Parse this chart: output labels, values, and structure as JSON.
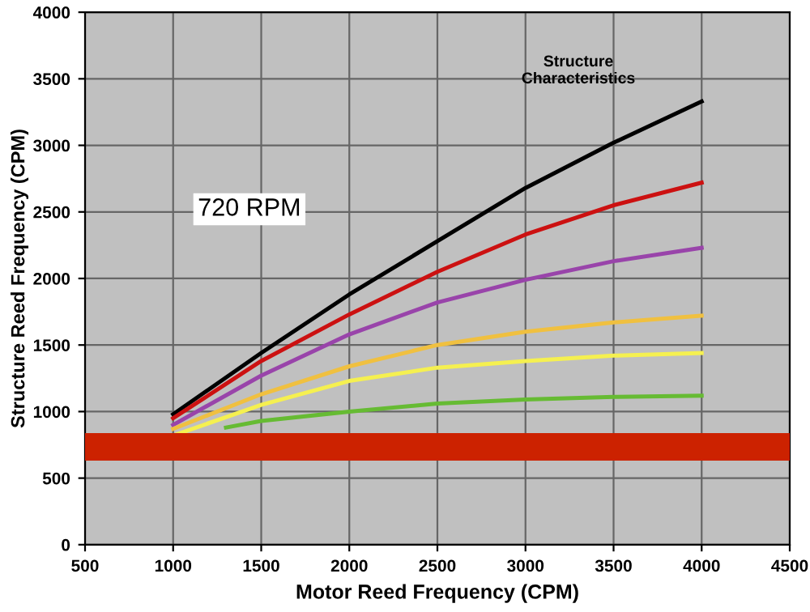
{
  "chart_data": {
    "type": "line",
    "xlabel": "Motor Reed Frequency (CPM)",
    "ylabel": "Structure Reed Frequency (CPM)",
    "x": [
      1000,
      1500,
      2000,
      2500,
      3000,
      3500,
      4000
    ],
    "series": [
      {
        "color": "#000000",
        "values": [
          980,
          1440,
          1880,
          2280,
          2680,
          3020,
          3330
        ]
      },
      {
        "color": "#cc1111",
        "values": [
          950,
          1380,
          1730,
          2050,
          2330,
          2550,
          2720
        ]
      },
      {
        "color": "#9944aa",
        "values": [
          900,
          1270,
          1580,
          1820,
          1990,
          2130,
          2230
        ]
      },
      {
        "color": "#f0c040",
        "values": [
          870,
          1130,
          1340,
          1500,
          1600,
          1670,
          1720
        ]
      },
      {
        "color": "#f5f050",
        "values": [
          820,
          1050,
          1230,
          1330,
          1380,
          1420,
          1440
        ]
      },
      {
        "color": "#66bb33",
        "x": [
          1300,
          1500,
          2000,
          2500,
          3000,
          3500,
          4000
        ],
        "values": [
          880,
          930,
          1000,
          1060,
          1090,
          1110,
          1120
        ]
      }
    ],
    "bands": [
      {
        "axis": "y",
        "from": 640,
        "to": 830,
        "color": "#cc2200"
      }
    ],
    "annotations": [
      "Structure\nCharacteristics",
      "720 RPM"
    ],
    "xlim": [
      500,
      4500
    ],
    "xticks": [
      500,
      1000,
      1500,
      2000,
      2500,
      3000,
      3500,
      4000,
      4500
    ],
    "ylim": [
      0,
      4000
    ],
    "yticks": [
      0,
      500,
      1000,
      1500,
      2000,
      2500,
      3000,
      3500,
      4000
    ],
    "grid": true,
    "legend": false,
    "marker": "none",
    "line_style": "solid"
  }
}
